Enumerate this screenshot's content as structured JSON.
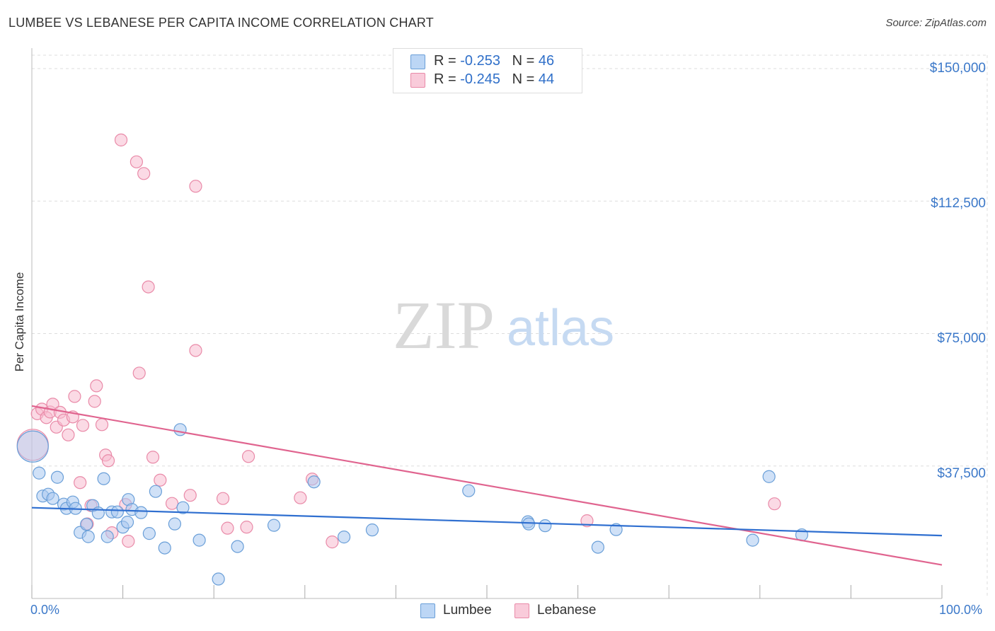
{
  "title": "LUMBEE VS LEBANESE PER CAPITA INCOME CORRELATION CHART",
  "source": "Source: ZipAtlas.com",
  "watermark": {
    "zip": "ZIP",
    "atlas": "atlas"
  },
  "legend": {
    "lumbee": {
      "r_label": "R =",
      "r_value": "-0.253",
      "n_label": "N =",
      "n_value": "46"
    },
    "lebanese": {
      "r_label": "R =",
      "r_value": "-0.245",
      "n_label": "N =",
      "n_value": "44"
    }
  },
  "colors": {
    "lumbee_fill": "#a9c9f0",
    "lumbee_stroke": "#6a9fd8",
    "lumbee_line": "#2f6fd0",
    "lebanese_fill": "#f7bcd0",
    "lebanese_stroke": "#e98aa8",
    "lebanese_line": "#e0648f",
    "tick_text": "#3b78c9",
    "grid": "#dddddd"
  },
  "chart_data": {
    "type": "scatter",
    "title": "LUMBEE VS LEBANESE PER CAPITA INCOME CORRELATION CHART",
    "xlabel": "",
    "ylabel": "Per Capita Income",
    "xlim": [
      0,
      100
    ],
    "ylim": [
      0,
      150000
    ],
    "x_tick_labels": [
      "0.0%",
      "100.0%"
    ],
    "y_ticks": [
      37500,
      75000,
      112500,
      150000
    ],
    "y_tick_labels": [
      "$37,500",
      "$75,000",
      "$112,500",
      "$150,000"
    ],
    "legend_position": "top-center",
    "series": [
      {
        "name": "Lumbee",
        "r": -0.253,
        "n": 46,
        "trend": {
          "x": [
            0,
            100
          ],
          "y": [
            25700,
            17800
          ]
        },
        "points": [
          {
            "x": 0.1,
            "y": 43000,
            "big": true
          },
          {
            "x": 0.8,
            "y": 35500
          },
          {
            "x": 1.2,
            "y": 29000
          },
          {
            "x": 1.8,
            "y": 29500
          },
          {
            "x": 2.3,
            "y": 28300
          },
          {
            "x": 2.8,
            "y": 34300
          },
          {
            "x": 3.5,
            "y": 26700
          },
          {
            "x": 3.8,
            "y": 25500
          },
          {
            "x": 4.5,
            "y": 27300
          },
          {
            "x": 4.8,
            "y": 25500
          },
          {
            "x": 5.3,
            "y": 18700
          },
          {
            "x": 6.0,
            "y": 21000
          },
          {
            "x": 6.2,
            "y": 17500
          },
          {
            "x": 6.7,
            "y": 26300
          },
          {
            "x": 7.3,
            "y": 24200
          },
          {
            "x": 7.9,
            "y": 33900
          },
          {
            "x": 8.3,
            "y": 17500
          },
          {
            "x": 8.8,
            "y": 24500
          },
          {
            "x": 9.4,
            "y": 24500
          },
          {
            "x": 10.0,
            "y": 20200
          },
          {
            "x": 10.5,
            "y": 21600
          },
          {
            "x": 10.6,
            "y": 28000
          },
          {
            "x": 11.0,
            "y": 25200
          },
          {
            "x": 12.0,
            "y": 24300
          },
          {
            "x": 12.9,
            "y": 18400
          },
          {
            "x": 13.6,
            "y": 30300
          },
          {
            "x": 14.6,
            "y": 14300
          },
          {
            "x": 15.7,
            "y": 21100
          },
          {
            "x": 16.3,
            "y": 47800
          },
          {
            "x": 16.6,
            "y": 25700
          },
          {
            "x": 18.4,
            "y": 16500
          },
          {
            "x": 20.5,
            "y": 5500
          },
          {
            "x": 22.6,
            "y": 14700
          },
          {
            "x": 26.6,
            "y": 20700
          },
          {
            "x": 31.0,
            "y": 33000
          },
          {
            "x": 34.3,
            "y": 17400
          },
          {
            "x": 37.4,
            "y": 19400
          },
          {
            "x": 48.0,
            "y": 30500
          },
          {
            "x": 54.5,
            "y": 21700
          },
          {
            "x": 54.6,
            "y": 21100
          },
          {
            "x": 56.4,
            "y": 20600
          },
          {
            "x": 62.2,
            "y": 14500
          },
          {
            "x": 64.2,
            "y": 19500
          },
          {
            "x": 79.2,
            "y": 16500
          },
          {
            "x": 81.0,
            "y": 34500
          },
          {
            "x": 84.6,
            "y": 18000
          }
        ]
      },
      {
        "name": "Lebanese",
        "r": -0.245,
        "n": 44,
        "trend": {
          "x": [
            0,
            100
          ],
          "y": [
            54500,
            9500
          ]
        },
        "points": [
          {
            "x": 0.1,
            "y": 43500,
            "big": true
          },
          {
            "x": 0.6,
            "y": 52300
          },
          {
            "x": 1.1,
            "y": 53600
          },
          {
            "x": 1.6,
            "y": 51200
          },
          {
            "x": 2.0,
            "y": 52800
          },
          {
            "x": 2.3,
            "y": 55000
          },
          {
            "x": 2.7,
            "y": 48500
          },
          {
            "x": 3.1,
            "y": 52700
          },
          {
            "x": 3.5,
            "y": 50500
          },
          {
            "x": 4.0,
            "y": 46300
          },
          {
            "x": 4.5,
            "y": 51400
          },
          {
            "x": 4.7,
            "y": 57200
          },
          {
            "x": 5.3,
            "y": 32800
          },
          {
            "x": 5.6,
            "y": 49000
          },
          {
            "x": 6.1,
            "y": 21100
          },
          {
            "x": 6.5,
            "y": 26300
          },
          {
            "x": 6.9,
            "y": 55800
          },
          {
            "x": 7.1,
            "y": 60200
          },
          {
            "x": 7.7,
            "y": 49200
          },
          {
            "x": 8.1,
            "y": 40600
          },
          {
            "x": 8.4,
            "y": 39000
          },
          {
            "x": 8.8,
            "y": 18600
          },
          {
            "x": 9.8,
            "y": 129800
          },
          {
            "x": 10.3,
            "y": 26600
          },
          {
            "x": 10.6,
            "y": 16200
          },
          {
            "x": 11.5,
            "y": 123600
          },
          {
            "x": 11.8,
            "y": 63800
          },
          {
            "x": 12.3,
            "y": 120300
          },
          {
            "x": 12.8,
            "y": 88200
          },
          {
            "x": 13.3,
            "y": 40000
          },
          {
            "x": 14.1,
            "y": 33500
          },
          {
            "x": 15.4,
            "y": 26900
          },
          {
            "x": 17.4,
            "y": 29200
          },
          {
            "x": 18.0,
            "y": 116700
          },
          {
            "x": 18.0,
            "y": 70200
          },
          {
            "x": 21.0,
            "y": 28300
          },
          {
            "x": 21.5,
            "y": 19900
          },
          {
            "x": 23.6,
            "y": 20200
          },
          {
            "x": 23.8,
            "y": 40200
          },
          {
            "x": 29.5,
            "y": 28500
          },
          {
            "x": 30.8,
            "y": 33800
          },
          {
            "x": 33.0,
            "y": 16000
          },
          {
            "x": 61.0,
            "y": 22000
          },
          {
            "x": 81.6,
            "y": 26800
          }
        ]
      }
    ]
  }
}
